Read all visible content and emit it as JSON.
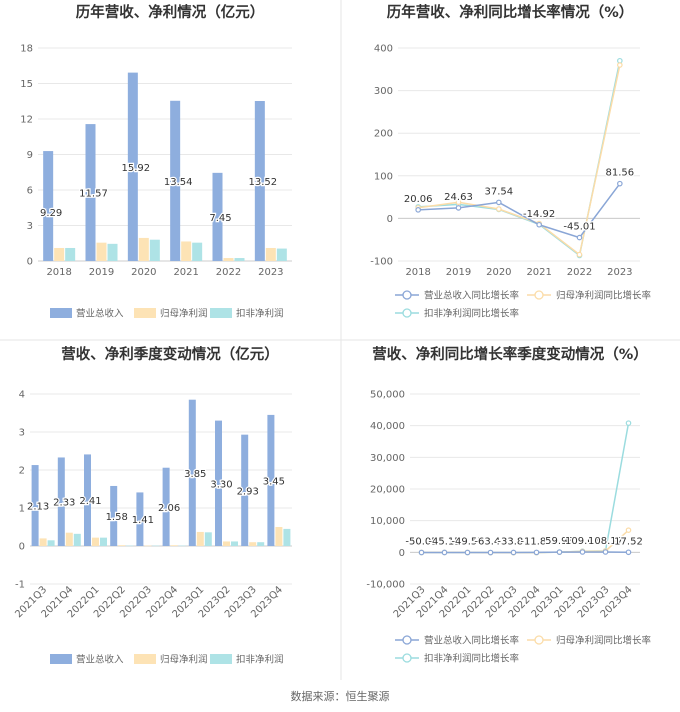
{
  "source": "数据来源：恒生聚源",
  "colors": {
    "revenue": "#8eaede",
    "parent_net": "#fde3b5",
    "deducted_net": "#aee3e6",
    "revenue_line": "#8aa6d6",
    "parent_line": "#fbdca8",
    "deducted_line": "#9bdcdf"
  },
  "chart_data": [
    {
      "type": "bar",
      "title": "历年营收、净利情况（亿元）",
      "categories": [
        "2018",
        "2019",
        "2020",
        "2021",
        "2022",
        "2023"
      ],
      "yticks": [
        "0",
        "3",
        "6",
        "9",
        "12",
        "15",
        "18"
      ],
      "ylim": [
        0,
        18
      ],
      "series": [
        {
          "name": "营业总收入",
          "values": [
            9.29,
            11.57,
            15.92,
            13.54,
            7.45,
            13.52
          ],
          "labels": [
            "9.29",
            "11.57",
            "15.92",
            "13.54",
            "7.45",
            "13.52"
          ]
        },
        {
          "name": "归母净利润",
          "values": [
            1.1,
            1.55,
            1.95,
            1.65,
            0.25,
            1.1
          ]
        },
        {
          "name": "扣非净利润",
          "values": [
            1.1,
            1.45,
            1.8,
            1.55,
            0.25,
            1.05
          ]
        }
      ],
      "legend": "bottom"
    },
    {
      "type": "line",
      "title": "历年营收、净利同比增长率情况（%）",
      "categories": [
        "2018",
        "2019",
        "2020",
        "2021",
        "2022",
        "2023"
      ],
      "yticks": [
        "-100",
        "0",
        "100",
        "200",
        "300",
        "400"
      ],
      "ylim": [
        -100,
        400
      ],
      "series": [
        {
          "name": "营业总收入同比增长率",
          "values": [
            20.06,
            24.63,
            37.54,
            -14.92,
            -45.01,
            81.56
          ],
          "labels": [
            "20.06",
            "24.63",
            "37.54",
            "-14.92",
            "-45.01",
            "81.56"
          ]
        },
        {
          "name": "归母净利润同比增长率",
          "values": [
            25,
            38,
            22,
            -12,
            -85,
            360
          ]
        },
        {
          "name": "扣非净利润同比增长率",
          "values": [
            27,
            33,
            21,
            -14,
            -87,
            370
          ]
        }
      ],
      "legend": "bottom"
    },
    {
      "type": "bar",
      "title": "营收、净利季度变动情况（亿元）",
      "categories": [
        "2021Q3",
        "2021Q4",
        "2022Q1",
        "2022Q2",
        "2022Q3",
        "2022Q4",
        "2023Q1",
        "2023Q2",
        "2023Q3",
        "2023Q4"
      ],
      "yticks": [
        "-1",
        "0",
        "1",
        "2",
        "3",
        "4"
      ],
      "ylim": [
        -1,
        4
      ],
      "series": [
        {
          "name": "营业总收入",
          "values": [
            2.13,
            2.33,
            2.41,
            1.58,
            1.41,
            2.06,
            3.85,
            3.3,
            2.93,
            3.45
          ],
          "labels": [
            "2.13",
            "2.33",
            "2.41",
            "1.58",
            "1.41",
            "2.06",
            "3.85",
            "3.30",
            "2.93",
            "3.45"
          ]
        },
        {
          "name": "归母净利润",
          "values": [
            0.2,
            0.35,
            0.22,
            0.02,
            0.01,
            0.02,
            0.37,
            0.12,
            0.1,
            0.5
          ]
        },
        {
          "name": "扣非净利润",
          "values": [
            0.15,
            0.32,
            0.22,
            0.01,
            0.01,
            0.01,
            0.36,
            0.12,
            0.1,
            0.45
          ]
        }
      ],
      "legend": "bottom"
    },
    {
      "type": "line",
      "title": "营收、净利同比增长率季度变动情况（%）",
      "categories": [
        "2021Q3",
        "2021Q4",
        "2022Q1",
        "2022Q2",
        "2022Q3",
        "2022Q4",
        "2023Q1",
        "2023Q2",
        "2023Q3",
        "2023Q4"
      ],
      "yticks": [
        "-10,000",
        "0",
        "10,000",
        "20,000",
        "30,000",
        "40,000",
        "50,000"
      ],
      "ylim": [
        -10000,
        50000
      ],
      "series": [
        {
          "name": "营业总收入同比增长率",
          "values": [
            -50.05,
            -45.15,
            -49.57,
            -63.43,
            -33.82,
            -11.83,
            59.98,
            109.05,
            108.17,
            17.52
          ],
          "labels": [
            "-50.05",
            "-45.15",
            "-49.57",
            "-63.43",
            "-33.82",
            "-11.83",
            "59.98",
            "109.05",
            "108.17",
            "17.52"
          ]
        },
        {
          "name": "归母净利润同比增长率",
          "values": [
            -40,
            -30,
            -40,
            -90,
            -95,
            -95,
            60,
            300,
            400,
            7000
          ]
        },
        {
          "name": "扣非净利润同比增长率",
          "values": [
            -45,
            -35,
            -45,
            -95,
            -97,
            -97,
            70,
            350,
            450,
            40800
          ]
        }
      ],
      "legend": "bottom"
    }
  ]
}
